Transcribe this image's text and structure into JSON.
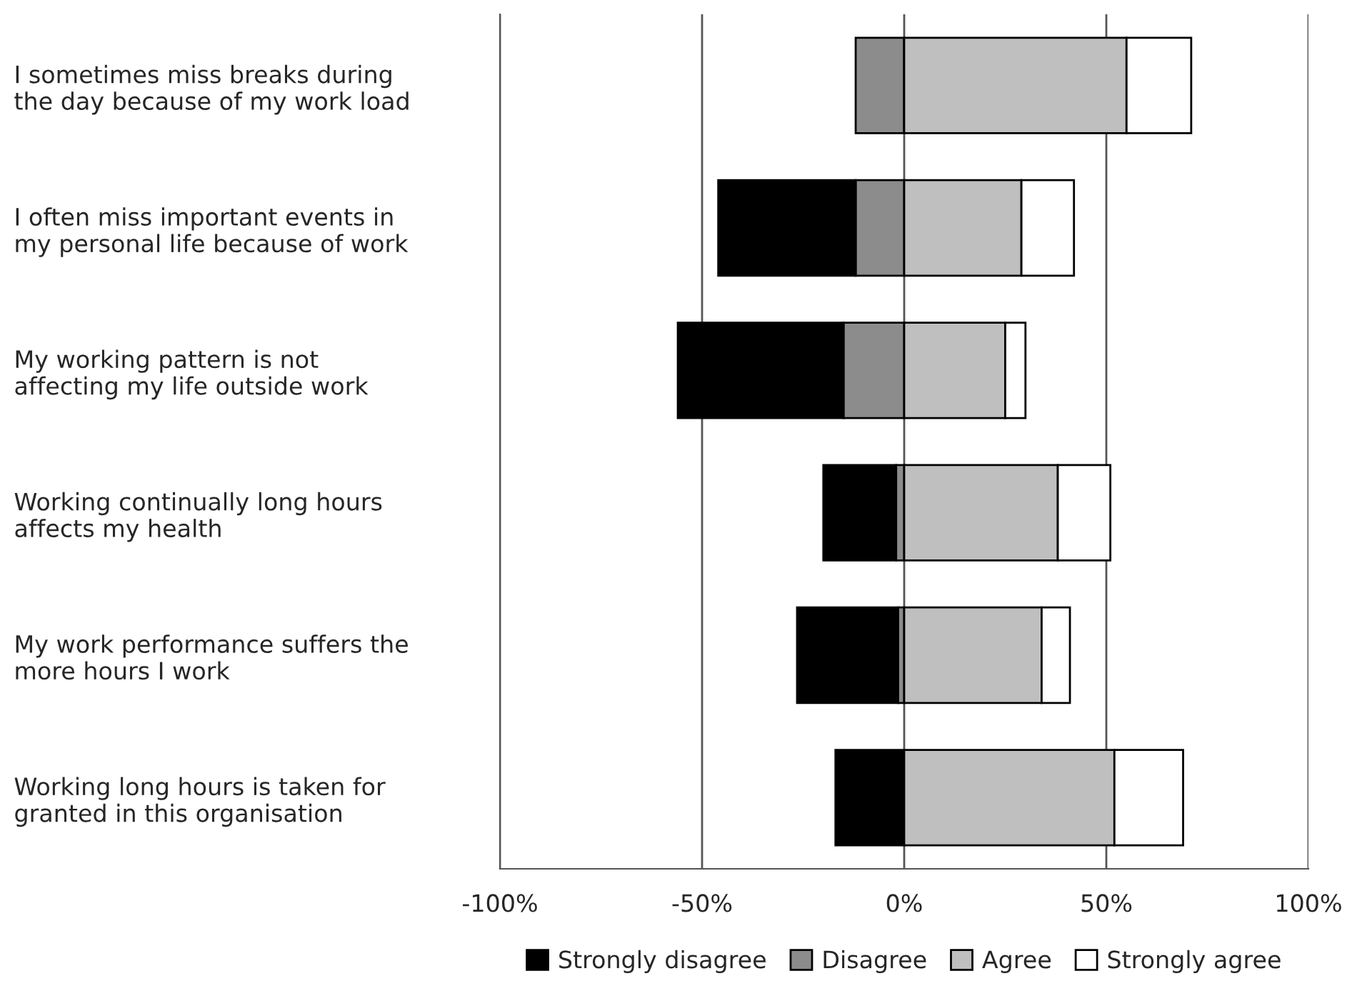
{
  "chart_data": {
    "type": "bar",
    "orientation": "horizontal",
    "stacked": true,
    "categories": [
      "I sometimes miss breaks during\nthe day because of my work load",
      "I often miss important events in\nmy personal life because of work",
      "My working pattern is not\naffecting my life outside work",
      "Working continually long hours\naffects my health",
      "My work performance suffers the\nmore hours I work",
      "Working long hours is taken for\ngranted in this organisation"
    ],
    "series": [
      {
        "name": "Disagree",
        "color": "#8c8c8c",
        "values": [
          -12,
          -12,
          -15,
          -2,
          -1.5,
          0
        ]
      },
      {
        "name": "Strongly disagree",
        "color": "#000000",
        "values": [
          0,
          -34,
          -41,
          -18,
          -25,
          -17
        ]
      },
      {
        "name": "Agree",
        "color": "#bfbfbf",
        "values": [
          55,
          29,
          25,
          38,
          34,
          52
        ]
      },
      {
        "name": "Strongly agree",
        "color": "#ffffff",
        "values": [
          16,
          13,
          5,
          13,
          7,
          17
        ]
      }
    ],
    "xlim": [
      -100,
      100
    ],
    "xticks": [
      {
        "value": -100,
        "label": "-100%"
      },
      {
        "value": -50,
        "label": "-50%"
      },
      {
        "value": 0,
        "label": "0%"
      },
      {
        "value": 50,
        "label": "50%"
      },
      {
        "value": 100,
        "label": "100%"
      }
    ],
    "grid": "x",
    "legend": "bottom"
  }
}
